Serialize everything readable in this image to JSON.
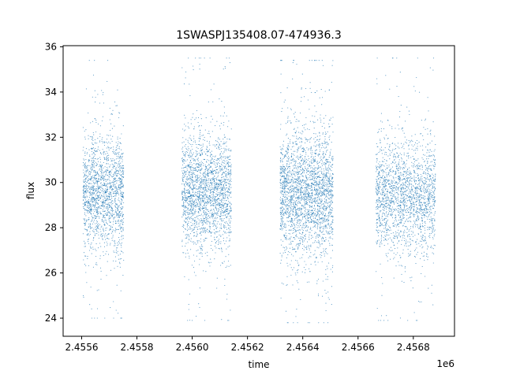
{
  "chart_data": {
    "type": "scatter",
    "title": "1SWASPJ135408.07-474936.3",
    "xlabel": "time",
    "ylabel": "flux",
    "x_offset_label": "1e6",
    "xlim": [
      2455533,
      2456949
    ],
    "ylim": [
      23.2,
      36.05
    ],
    "x_ticks": [
      2455600,
      2455800,
      2456000,
      2456200,
      2456400,
      2456600,
      2456800
    ],
    "x_tick_labels": [
      "2.4556",
      "2.4558",
      "2.4560",
      "2.4562",
      "2.4564",
      "2.4566",
      "2.4568"
    ],
    "y_ticks": [
      24,
      26,
      28,
      30,
      32,
      34,
      36
    ],
    "y_tick_labels": [
      "24",
      "26",
      "28",
      "30",
      "32",
      "34",
      "36"
    ],
    "grid": false,
    "legend": "none",
    "point_color": "#1f77b4",
    "series": [
      {
        "segments": [
          {
            "x_start": 2455605,
            "x_end": 2455752,
            "y_center": 29.5,
            "y_core_halfwidth": 1.2,
            "y_min": 24.0,
            "y_max": 35.4,
            "count": 1700
          },
          {
            "x_start": 2455963,
            "x_end": 2456142,
            "y_center": 29.6,
            "y_core_halfwidth": 1.2,
            "y_min": 23.9,
            "y_max": 35.5,
            "count": 2100
          },
          {
            "x_start": 2456318,
            "x_end": 2456510,
            "y_center": 29.5,
            "y_core_halfwidth": 1.3,
            "y_min": 23.8,
            "y_max": 35.4,
            "count": 2500
          },
          {
            "x_start": 2456665,
            "x_end": 2456880,
            "y_center": 29.4,
            "y_core_halfwidth": 1.2,
            "y_min": 23.9,
            "y_max": 35.5,
            "count": 2000
          }
        ]
      }
    ]
  }
}
